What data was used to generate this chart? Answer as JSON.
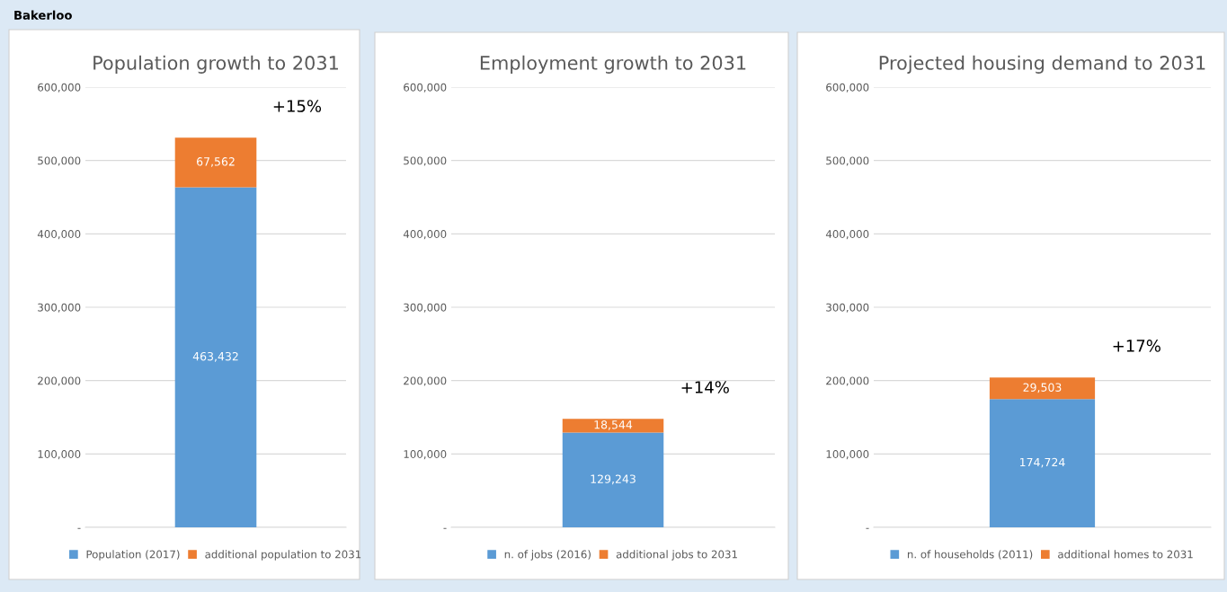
{
  "chart_data": [
    {
      "type": "bar",
      "stacked": true,
      "title": "Population growth to 2031",
      "categories": [
        null
      ],
      "series": [
        {
          "name": "Population (2017)",
          "color": "#5b9bd5",
          "values": [
            463432
          ],
          "value_labels": [
            "463,432"
          ]
        },
        {
          "name": "additional population to 2031",
          "color": "#ed7d31",
          "values": [
            67562
          ],
          "value_labels": [
            "67,562"
          ]
        }
      ],
      "ylim": [
        0,
        600000
      ],
      "yticks": [
        {
          "value": 0,
          "label": "-"
        },
        {
          "value": 100000,
          "label": "100,000"
        },
        {
          "value": 200000,
          "label": "200,000"
        },
        {
          "value": 300000,
          "label": "300,000"
        },
        {
          "value": 400000,
          "label": "400,000"
        },
        {
          "value": 500000,
          "label": "500,000"
        },
        {
          "value": 600000,
          "label": "600,000"
        }
      ],
      "grid": "y",
      "legend": "bottom",
      "annotations": [
        "Bakerloo",
        "+15%"
      ]
    },
    {
      "type": "bar",
      "stacked": true,
      "title": "Employment growth to 2031",
      "categories": [
        null
      ],
      "series": [
        {
          "name": "n. of jobs (2016)",
          "color": "#5b9bd5",
          "values": [
            129243
          ],
          "value_labels": [
            "129,243"
          ]
        },
        {
          "name": "additional jobs to 2031",
          "color": "#ed7d31",
          "values": [
            18544
          ],
          "value_labels": [
            "18,544"
          ]
        }
      ],
      "ylim": [
        0,
        600000
      ],
      "yticks": [
        {
          "value": 0,
          "label": "-"
        },
        {
          "value": 100000,
          "label": "100,000"
        },
        {
          "value": 200000,
          "label": "200,000"
        },
        {
          "value": 300000,
          "label": "300,000"
        },
        {
          "value": 400000,
          "label": "400,000"
        },
        {
          "value": 500000,
          "label": "500,000"
        },
        {
          "value": 600000,
          "label": "600,000"
        }
      ],
      "grid": "y",
      "legend": "bottom",
      "annotations": [
        "+14%"
      ]
    },
    {
      "type": "bar",
      "stacked": true,
      "title": "Projected housing demand to 2031",
      "categories": [
        null
      ],
      "series": [
        {
          "name": "n. of households (2011)",
          "color": "#5b9bd5",
          "values": [
            174724
          ],
          "value_labels": [
            "174,724"
          ]
        },
        {
          "name": "additional homes to 2031",
          "color": "#ed7d31",
          "values": [
            29503
          ],
          "value_labels": [
            "29,503"
          ]
        }
      ],
      "ylim": [
        0,
        600000
      ],
      "yticks": [
        {
          "value": 0,
          "label": "-"
        },
        {
          "value": 100000,
          "label": "100,000"
        },
        {
          "value": 200000,
          "label": "200,000"
        },
        {
          "value": 300000,
          "label": "300,000"
        },
        {
          "value": 400000,
          "label": "400,000"
        },
        {
          "value": 500000,
          "label": "500,000"
        },
        {
          "value": 600000,
          "label": "600,000"
        }
      ],
      "grid": "y",
      "legend": "bottom",
      "annotations": [
        "+17%"
      ]
    }
  ]
}
